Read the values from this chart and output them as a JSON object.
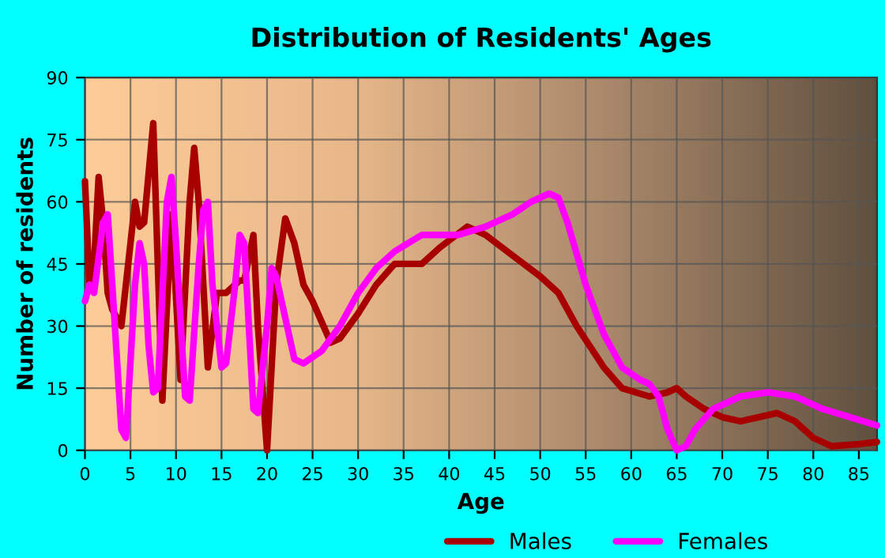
{
  "chart_data": {
    "type": "line",
    "title": "Distribution of Residents' Ages",
    "xlabel": "Age",
    "ylabel": "Number of residents",
    "xlim": [
      0,
      87
    ],
    "ylim": [
      0,
      90
    ],
    "xticks": [
      0,
      5,
      10,
      15,
      20,
      25,
      30,
      35,
      40,
      45,
      50,
      55,
      60,
      65,
      70,
      75,
      80,
      85
    ],
    "yticks": [
      0,
      15,
      30,
      45,
      60,
      75,
      90
    ],
    "grid": true,
    "legend": "bottom",
    "line_style": "solid",
    "marker": "none",
    "series": [
      {
        "name": "Males",
        "color": "#a80000",
        "x": [
          0,
          0.5,
          1,
          1.5,
          2,
          2.5,
          3,
          4,
          5,
          5.5,
          6,
          6.5,
          7.5,
          8,
          8.5,
          9.5,
          10.5,
          11.5,
          12,
          12.5,
          13.5,
          14.5,
          15.5,
          17,
          17.5,
          18.5,
          19,
          20,
          21,
          22,
          23,
          24,
          25,
          27,
          28,
          30,
          32,
          34,
          37,
          39,
          42,
          44,
          47,
          50,
          52,
          54,
          57,
          59,
          62,
          64,
          65,
          66,
          68,
          70,
          72,
          74,
          76,
          78,
          80,
          82,
          85,
          87
        ],
        "values": [
          65,
          40,
          45,
          66,
          55,
          38,
          34,
          30,
          50,
          60,
          54,
          55,
          79,
          45,
          12,
          57,
          17,
          60,
          73,
          60,
          20,
          38,
          38,
          41,
          41,
          52,
          30,
          0,
          40,
          56,
          50,
          40,
          36,
          26,
          27,
          33,
          40,
          45,
          45,
          49,
          54,
          52,
          47,
          42,
          38,
          30,
          20,
          15,
          13,
          14,
          15,
          13,
          10,
          8,
          7,
          8,
          9,
          7,
          3,
          1,
          1.5,
          2
        ]
      },
      {
        "name": "Females",
        "color": "#ff00ff",
        "x": [
          0,
          0.5,
          1,
          2,
          2.5,
          3,
          4,
          4.5,
          5.5,
          6,
          6.5,
          7,
          7.5,
          8,
          9,
          9.5,
          10,
          11,
          11.5,
          12.5,
          13,
          13.5,
          14,
          15,
          15.5,
          16.5,
          17,
          17.5,
          18.5,
          19,
          20,
          20.5,
          21,
          22,
          23,
          24,
          26,
          28,
          30,
          32,
          34,
          37,
          39,
          41,
          44,
          47,
          49,
          51,
          52,
          53,
          55,
          57,
          59,
          61,
          62,
          63,
          64,
          65,
          66,
          67,
          69,
          72,
          75,
          78,
          81,
          84,
          87
        ],
        "values": [
          36,
          40,
          38,
          55,
          57,
          40,
          5,
          3,
          40,
          50,
          45,
          25,
          14,
          15,
          60,
          66,
          50,
          13,
          12,
          45,
          58,
          60,
          40,
          20,
          21,
          40,
          52,
          50,
          10,
          9,
          30,
          44,
          42,
          32,
          22,
          21,
          24,
          30,
          38,
          44,
          48,
          52,
          52,
          52,
          54,
          57,
          60,
          62,
          61,
          55,
          40,
          28,
          20,
          17,
          16,
          13,
          5,
          0,
          1,
          5,
          10,
          13,
          14,
          13,
          10,
          8,
          6
        ]
      }
    ]
  }
}
